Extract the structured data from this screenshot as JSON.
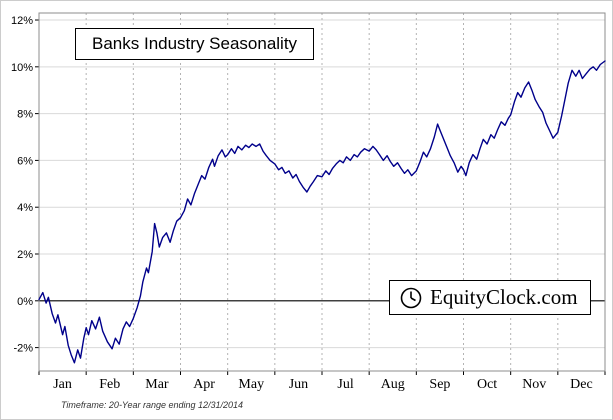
{
  "watermark": {
    "text": "EquityClock.com"
  },
  "footer": {
    "timeframe": "Timeframe: 20-Year range ending 12/31/2014"
  },
  "chart_data": {
    "type": "line",
    "title": "Banks Industry Seasonality",
    "xlabel": "",
    "ylabel": "",
    "x_labels": [
      "Jan",
      "Feb",
      "Mar",
      "Apr",
      "May",
      "Jun",
      "Jul",
      "Aug",
      "Sep",
      "Oct",
      "Nov",
      "Dec"
    ],
    "y_ticks": [
      -2,
      0,
      2,
      4,
      6,
      8,
      10,
      12
    ],
    "y_tick_labels": [
      "-2%",
      "0%",
      "2%",
      "4%",
      "6%",
      "8%",
      "10%",
      "12%"
    ],
    "xlim": [
      0,
      12
    ],
    "ylim": [
      -3,
      12.3
    ],
    "grid": "on",
    "line_color": "#00008b",
    "points": [
      [
        0,
        0.05
      ],
      [
        0.08,
        0.35
      ],
      [
        0.15,
        -0.1
      ],
      [
        0.2,
        0.15
      ],
      [
        0.28,
        -0.55
      ],
      [
        0.35,
        -0.95
      ],
      [
        0.4,
        -0.6
      ],
      [
        0.5,
        -1.45
      ],
      [
        0.55,
        -1.1
      ],
      [
        0.62,
        -1.9
      ],
      [
        0.68,
        -2.3
      ],
      [
        0.75,
        -2.65
      ],
      [
        0.82,
        -2.1
      ],
      [
        0.88,
        -2.45
      ],
      [
        0.95,
        -1.6
      ],
      [
        1,
        -1.15
      ],
      [
        1.05,
        -1.45
      ],
      [
        1.12,
        -0.85
      ],
      [
        1.2,
        -1.2
      ],
      [
        1.28,
        -0.7
      ],
      [
        1.35,
        -1.3
      ],
      [
        1.45,
        -1.75
      ],
      [
        1.55,
        -2.05
      ],
      [
        1.62,
        -1.6
      ],
      [
        1.7,
        -1.85
      ],
      [
        1.78,
        -1.2
      ],
      [
        1.85,
        -0.9
      ],
      [
        1.92,
        -1.1
      ],
      [
        2,
        -0.75
      ],
      [
        2.08,
        -0.3
      ],
      [
        2.15,
        0.2
      ],
      [
        2.2,
        0.8
      ],
      [
        2.28,
        1.4
      ],
      [
        2.32,
        1.2
      ],
      [
        2.4,
        2.1
      ],
      [
        2.45,
        3.3
      ],
      [
        2.5,
        2.9
      ],
      [
        2.55,
        2.3
      ],
      [
        2.62,
        2.7
      ],
      [
        2.7,
        2.9
      ],
      [
        2.78,
        2.5
      ],
      [
        2.85,
        3.0
      ],
      [
        2.92,
        3.4
      ],
      [
        3,
        3.55
      ],
      [
        3.08,
        3.85
      ],
      [
        3.15,
        4.35
      ],
      [
        3.22,
        4.1
      ],
      [
        3.3,
        4.6
      ],
      [
        3.38,
        5.0
      ],
      [
        3.45,
        5.35
      ],
      [
        3.52,
        5.2
      ],
      [
        3.6,
        5.7
      ],
      [
        3.68,
        6.05
      ],
      [
        3.72,
        5.75
      ],
      [
        3.8,
        6.2
      ],
      [
        3.88,
        6.45
      ],
      [
        3.95,
        6.15
      ],
      [
        4,
        6.25
      ],
      [
        4.08,
        6.5
      ],
      [
        4.15,
        6.3
      ],
      [
        4.22,
        6.6
      ],
      [
        4.3,
        6.45
      ],
      [
        4.38,
        6.65
      ],
      [
        4.45,
        6.55
      ],
      [
        4.52,
        6.7
      ],
      [
        4.6,
        6.6
      ],
      [
        4.68,
        6.7
      ],
      [
        4.75,
        6.4
      ],
      [
        4.82,
        6.2
      ],
      [
        4.9,
        6.0
      ],
      [
        5,
        5.85
      ],
      [
        5.08,
        5.6
      ],
      [
        5.15,
        5.7
      ],
      [
        5.22,
        5.45
      ],
      [
        5.3,
        5.55
      ],
      [
        5.38,
        5.25
      ],
      [
        5.45,
        5.4
      ],
      [
        5.52,
        5.1
      ],
      [
        5.6,
        4.85
      ],
      [
        5.68,
        4.65
      ],
      [
        5.75,
        4.9
      ],
      [
        5.82,
        5.1
      ],
      [
        5.9,
        5.35
      ],
      [
        6,
        5.3
      ],
      [
        6.08,
        5.55
      ],
      [
        6.15,
        5.4
      ],
      [
        6.22,
        5.65
      ],
      [
        6.3,
        5.85
      ],
      [
        6.38,
        6.0
      ],
      [
        6.45,
        5.9
      ],
      [
        6.52,
        6.15
      ],
      [
        6.6,
        6.0
      ],
      [
        6.68,
        6.25
      ],
      [
        6.75,
        6.15
      ],
      [
        6.82,
        6.35
      ],
      [
        6.9,
        6.5
      ],
      [
        7,
        6.4
      ],
      [
        7.08,
        6.6
      ],
      [
        7.15,
        6.45
      ],
      [
        7.22,
        6.25
      ],
      [
        7.3,
        6.0
      ],
      [
        7.38,
        6.2
      ],
      [
        7.45,
        5.95
      ],
      [
        7.52,
        5.75
      ],
      [
        7.6,
        5.9
      ],
      [
        7.68,
        5.65
      ],
      [
        7.75,
        5.45
      ],
      [
        7.82,
        5.6
      ],
      [
        7.9,
        5.35
      ],
      [
        8,
        5.55
      ],
      [
        8.08,
        5.95
      ],
      [
        8.15,
        6.35
      ],
      [
        8.22,
        6.15
      ],
      [
        8.3,
        6.5
      ],
      [
        8.38,
        7.0
      ],
      [
        8.45,
        7.55
      ],
      [
        8.5,
        7.3
      ],
      [
        8.58,
        6.9
      ],
      [
        8.65,
        6.55
      ],
      [
        8.72,
        6.2
      ],
      [
        8.8,
        5.9
      ],
      [
        8.88,
        5.5
      ],
      [
        8.95,
        5.75
      ],
      [
        9,
        5.6
      ],
      [
        9.05,
        5.35
      ],
      [
        9.12,
        5.9
      ],
      [
        9.2,
        6.25
      ],
      [
        9.28,
        6.05
      ],
      [
        9.35,
        6.5
      ],
      [
        9.42,
        6.9
      ],
      [
        9.5,
        6.7
      ],
      [
        9.58,
        7.1
      ],
      [
        9.65,
        6.95
      ],
      [
        9.72,
        7.3
      ],
      [
        9.8,
        7.65
      ],
      [
        9.88,
        7.5
      ],
      [
        9.95,
        7.8
      ],
      [
        10,
        7.95
      ],
      [
        10.08,
        8.5
      ],
      [
        10.15,
        8.9
      ],
      [
        10.22,
        8.7
      ],
      [
        10.3,
        9.1
      ],
      [
        10.38,
        9.35
      ],
      [
        10.45,
        9.0
      ],
      [
        10.52,
        8.6
      ],
      [
        10.6,
        8.3
      ],
      [
        10.68,
        8.05
      ],
      [
        10.75,
        7.6
      ],
      [
        10.82,
        7.3
      ],
      [
        10.9,
        6.95
      ],
      [
        11,
        7.2
      ],
      [
        11.08,
        7.9
      ],
      [
        11.15,
        8.6
      ],
      [
        11.22,
        9.3
      ],
      [
        11.3,
        9.85
      ],
      [
        11.38,
        9.6
      ],
      [
        11.45,
        9.85
      ],
      [
        11.52,
        9.5
      ],
      [
        11.6,
        9.7
      ],
      [
        11.68,
        9.9
      ],
      [
        11.75,
        10.0
      ],
      [
        11.82,
        9.85
      ],
      [
        11.9,
        10.1
      ],
      [
        12,
        10.25
      ]
    ]
  }
}
